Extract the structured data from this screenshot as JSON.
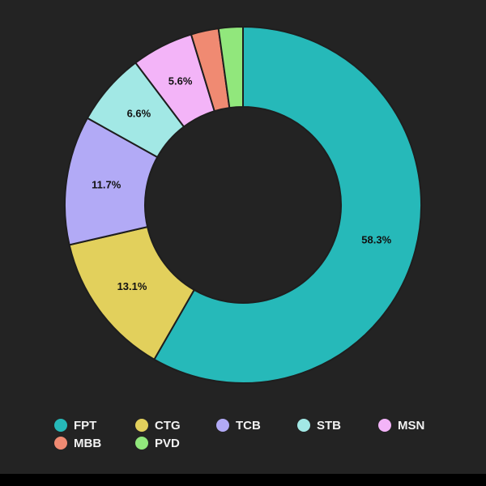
{
  "chart_data": {
    "type": "donut",
    "categories": [
      "FPT",
      "CTG",
      "TCB",
      "STB",
      "MSN",
      "MBB",
      "PVD"
    ],
    "values": [
      58.3,
      13.1,
      11.7,
      6.6,
      5.6,
      2.5,
      2.2
    ],
    "value_labels": [
      "58.3%",
      "13.1%",
      "11.7%",
      "6.6%",
      "5.6%",
      null,
      null
    ],
    "colors": [
      "#26b9b9",
      "#e2d05c",
      "#b2aaf6",
      "#a2e8e5",
      "#f3b4f8",
      "#f08a72",
      "#91e77c"
    ],
    "legend": "bottom"
  }
}
